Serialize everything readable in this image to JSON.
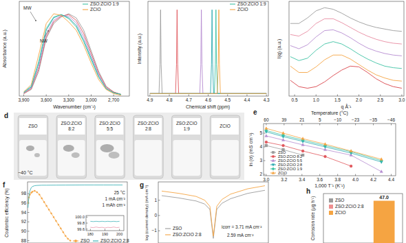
{
  "chart_data": [
    {
      "type": "line",
      "xlabel": "Wavenumber (cm⁻¹)",
      "ylabel": "Absorbance (a.u.)",
      "annotations": [
        "MW",
        "NW"
      ],
      "x": [
        3900,
        3800,
        3700,
        3600,
        3500,
        3400,
        3300,
        3200,
        3100,
        3000,
        2900,
        2800,
        2700,
        2600
      ],
      "xlim": [
        3960,
        2490
      ],
      "xticks": [
        {
          "value": 3900,
          "label": "3,900"
        },
        {
          "value": 3600,
          "label": "3,600"
        },
        {
          "value": 3300,
          "label": "3,300"
        },
        {
          "value": 3000,
          "label": "3,000"
        },
        {
          "value": 2700,
          "label": "2,700"
        }
      ],
      "ylim": [
        0,
        1.15
      ],
      "tick_labels": "x",
      "series": [
        {
          "color": "#9b9b9b",
          "values": [
            0.03,
            0.08,
            0.3,
            0.7,
            0.88,
            0.96,
            1.0,
            0.95,
            0.8,
            0.55,
            0.3,
            0.12,
            0.05,
            0.02
          ]
        },
        {
          "color": "#e0565b",
          "values": [
            0.03,
            0.09,
            0.33,
            0.72,
            0.9,
            0.97,
            0.99,
            0.92,
            0.76,
            0.52,
            0.28,
            0.11,
            0.05,
            0.02
          ]
        },
        {
          "color": "#b58bd0",
          "values": [
            0.04,
            0.1,
            0.36,
            0.75,
            0.92,
            0.98,
            0.97,
            0.89,
            0.72,
            0.49,
            0.26,
            0.1,
            0.04,
            0.02
          ]
        },
        {
          "color": "#2aa9b0",
          "values": [
            0.04,
            0.11,
            0.4,
            0.8,
            0.95,
            0.99,
            0.95,
            0.86,
            0.68,
            0.46,
            0.24,
            0.09,
            0.04,
            0.02
          ]
        },
        {
          "name": "ZSO:ZCIO 1:9",
          "color": "#3cc2a4",
          "values": [
            0.05,
            0.12,
            0.42,
            0.82,
            0.96,
            0.99,
            0.94,
            0.84,
            0.66,
            0.44,
            0.23,
            0.09,
            0.04,
            0.02
          ]
        },
        {
          "name": "ZCIO",
          "color": "#f5a442",
          "values": [
            0.05,
            0.14,
            0.5,
            0.88,
            1.0,
            0.98,
            0.9,
            0.8,
            0.62,
            0.4,
            0.2,
            0.08,
            0.03,
            0.01
          ]
        }
      ]
    },
    {
      "type": "line",
      "xlabel": "Chemical shift (ppm)",
      "ylabel": "Intensity (a.u.)",
      "xlim": [
        4.91,
        4.29
      ],
      "xticks": [
        4.9,
        4.8,
        4.7,
        4.6,
        4.5,
        4.4,
        4.3
      ],
      "ylim": [
        -0.03,
        1.1
      ],
      "tick_labels": "x",
      "series": [
        {
          "color": "#9b9b9b",
          "x": [
            4.9,
            4.853,
            4.848,
            4.845,
            4.842,
            4.837,
            4.3
          ],
          "values": [
            0,
            0,
            0.35,
            1,
            0.35,
            0,
            0
          ]
        },
        {
          "color": "#e0565b",
          "x": [
            4.9,
            4.768,
            4.763,
            4.76,
            4.757,
            4.752,
            4.3
          ],
          "values": [
            0,
            0,
            0.35,
            1,
            0.35,
            0,
            0
          ]
        },
        {
          "color": "#b58bd0",
          "x": [
            4.9,
            4.643,
            4.638,
            4.635,
            4.632,
            4.627,
            4.3
          ],
          "values": [
            0,
            0,
            0.35,
            1,
            0.35,
            0,
            0
          ]
        },
        {
          "color": "#2aa9b0",
          "x": [
            4.9,
            4.588,
            4.583,
            4.58,
            4.577,
            4.572,
            4.3
          ],
          "values": [
            0,
            0,
            0.35,
            1,
            0.35,
            0,
            0
          ]
        },
        {
          "name": "ZSO:ZCIO 1:9",
          "color": "#3cc2a4",
          "x": [
            4.9,
            4.568,
            4.563,
            4.56,
            4.557,
            4.552,
            4.3
          ],
          "values": [
            0,
            0,
            0.35,
            1,
            0.35,
            0,
            0
          ]
        },
        {
          "name": "ZCIO",
          "color": "#f5a442",
          "x": [
            4.9,
            4.553,
            4.548,
            4.545,
            4.542,
            4.537,
            4.3
          ],
          "values": [
            0,
            0,
            0.35,
            1,
            0.35,
            0,
            0
          ]
        }
      ]
    },
    {
      "type": "line",
      "xlabel": "q Å⁻¹",
      "ylabel": "I(q) (a.u.)",
      "x": [
        0.4,
        0.6,
        0.8,
        1.0,
        1.2,
        1.4,
        1.6,
        1.8,
        2.0,
        2.2,
        2.4,
        2.6,
        2.8,
        3.0
      ],
      "xlim": [
        0.37,
        3.05
      ],
      "xticks": [
        0.5,
        {
          "value": 1,
          "label": "1.0"
        },
        1.5,
        {
          "value": 2,
          "label": "2.0"
        },
        2.5,
        {
          "value": 3,
          "label": "3.0"
        }
      ],
      "ylim": [
        0,
        1.2
      ],
      "tick_labels": "x",
      "series": [
        {
          "color": "#d9434a",
          "values": [
            0.2,
            0.12,
            0.1,
            0.12,
            0.18,
            0.26,
            0.33,
            0.38,
            0.37,
            0.3,
            0.22,
            0.16,
            0.12,
            0.1
          ]
        },
        {
          "color": "#f5a442",
          "values": [
            0.38,
            0.3,
            0.3,
            0.37,
            0.46,
            0.52,
            0.52,
            0.47,
            0.4,
            0.33,
            0.27,
            0.23,
            0.2,
            0.19
          ]
        },
        {
          "color": "#3cc2a4",
          "values": [
            0.5,
            0.45,
            0.48,
            0.58,
            0.66,
            0.69,
            0.66,
            0.6,
            0.53,
            0.47,
            0.42,
            0.38,
            0.36,
            0.35
          ]
        },
        {
          "color": "#b58bd0",
          "values": [
            0.64,
            0.6,
            0.65,
            0.75,
            0.83,
            0.84,
            0.8,
            0.74,
            0.67,
            0.61,
            0.57,
            0.54,
            0.52,
            0.51
          ]
        },
        {
          "color": "#e88aa0",
          "values": [
            0.78,
            0.76,
            0.82,
            0.92,
            0.98,
            0.98,
            0.93,
            0.87,
            0.81,
            0.76,
            0.72,
            0.69,
            0.67,
            0.66
          ]
        },
        {
          "color": "#9b9b9b",
          "values": [
            0.92,
            0.92,
            0.99,
            1.08,
            1.12,
            1.1,
            1.05,
            0.99,
            0.94,
            0.9,
            0.87,
            0.85,
            0.83,
            0.82
          ]
        }
      ]
    },
    {
      "type": "line",
      "title": "e",
      "xlabel": "1,000 T⁻¹ (K⁻¹)",
      "x2label": "Temperature (°C)",
      "ylabel": "ln (σ) (mS cm⁻¹)",
      "x": [
        3.0,
        3.19,
        3.41,
        3.66,
        3.95,
        4.29
      ],
      "xlim": [
        2.97,
        4.45
      ],
      "xticks": [
        {
          "value": 3,
          "label": "3.0"
        },
        3.2,
        3.4,
        3.6,
        3.8,
        {
          "value": 4,
          "label": "4.0"
        },
        4.2,
        4.4
      ],
      "x2ticks": [
        {
          "value": 3.0,
          "label": "60"
        },
        {
          "value": 3.2,
          "label": "39"
        },
        {
          "value": 3.4,
          "label": "21"
        },
        {
          "value": 3.6,
          "label": "5"
        },
        {
          "value": 3.8,
          "label": "−10"
        },
        {
          "value": 4.0,
          "label": "−23"
        },
        {
          "value": 4.2,
          "label": "−35"
        },
        {
          "value": 4.4,
          "label": "−46"
        }
      ],
      "ylim": [
        1.9,
        5.7
      ],
      "yticks": [
        2,
        3,
        4,
        5
      ],
      "series": [
        {
          "name": "ZSO",
          "color": "#9b9b9b",
          "marker": "square",
          "values": [
            4.1,
            3.8,
            3.4,
            null,
            null,
            null
          ]
        },
        {
          "name": "ZSO:ZCIO 8:2",
          "color": "#e0565b",
          "marker": "circle",
          "values": [
            4.35,
            4.1,
            3.7,
            3.3,
            2.6,
            null
          ]
        },
        {
          "name": "ZSO:ZCIO 5:5",
          "color": "#b58bd0",
          "marker": "triangle",
          "values": [
            4.8,
            4.5,
            4.15,
            3.8,
            3.4,
            2.2
          ]
        },
        {
          "name": "ZSO:ZCIO 2:8",
          "color": "#2aa9b0",
          "marker": "triangle-down",
          "values": [
            5.1,
            4.75,
            4.4,
            4.0,
            3.55,
            2.9
          ]
        },
        {
          "name": "ZSO:ZCIO 1:9",
          "color": "#3cc2a4",
          "marker": "diamond",
          "values": [
            5.2,
            4.85,
            4.5,
            4.1,
            3.65,
            3.0
          ]
        },
        {
          "name": "ZCIO",
          "color": "#f5a442",
          "marker": "triangle",
          "values": [
            5.35,
            5.0,
            4.6,
            4.2,
            3.7,
            3.1
          ]
        }
      ]
    },
    {
      "type": "line",
      "title": "f",
      "ylabel": "Coulombic efficiency (%)",
      "annotations": [
        "25 °C",
        "1 mA cm⁻²",
        "1 mAh cm⁻²"
      ],
      "xlim": [
        0,
        210
      ],
      "ylim": [
        87.5,
        100.5
      ],
      "yticks": [
        88,
        90,
        92,
        94,
        96,
        98
      ],
      "tick_labels": "y",
      "series": [
        {
          "name": "ZSO",
          "color": "#f5a442",
          "marker": "circle",
          "x": [
            1,
            3,
            5,
            8,
            10,
            15,
            20,
            25,
            30,
            35,
            40,
            45,
            50,
            55,
            60,
            65,
            70,
            75,
            80,
            85,
            90
          ],
          "values": [
            96.0,
            97.2,
            97.8,
            98.2,
            98.4,
            98.6,
            98.3,
            97.8,
            97.0,
            96.2,
            95.4,
            94.6,
            93.8,
            93.0,
            92.2,
            91.4,
            90.6,
            89.8,
            89.0,
            88.4,
            88.0
          ]
        },
        {
          "name": "ZSO:ZCIO 2:8",
          "color": "#2aa9b0",
          "x": [
            1,
            3,
            5,
            8,
            10,
            15,
            20,
            30,
            40,
            60,
            80,
            100,
            120,
            140,
            160,
            180,
            200
          ],
          "values": [
            95.0,
            97.5,
            98.6,
            99.3,
            99.5,
            99.7,
            99.75,
            99.8,
            99.8,
            99.82,
            99.83,
            99.84,
            99.85,
            99.85,
            99.85,
            99.85,
            99.85
          ]
        }
      ]
    },
    {
      "type": "line",
      "x": [
        180,
        182,
        184,
        186,
        188,
        190,
        192,
        194,
        196,
        198,
        200
      ],
      "xlim": [
        177,
        203
      ],
      "xticks": [
        180,
        190,
        200
      ],
      "ylim": [
        99.55,
        100.05
      ],
      "yticks": [
        {
          "value": 100,
          "label": "100.0"
        },
        99.8,
        99.6
      ],
      "series": [
        {
          "color": "#2aa9b0",
          "values": [
            99.86,
            99.85,
            99.86,
            99.85,
            99.86,
            99.85,
            99.86,
            99.85,
            99.86,
            99.85,
            99.86
          ]
        },
        {
          "color": "#e88aa0",
          "values": [
            99.66,
            99.65,
            99.67,
            99.65,
            99.66,
            99.64,
            99.66,
            99.65,
            99.67,
            99.65,
            99.66
          ]
        }
      ]
    },
    {
      "type": "line",
      "title": "g",
      "ylabel": "log (current density) (mA cm⁻²)",
      "annotations": [
        "icorr = 3.71 mA cm⁻²",
        "2.59 mA cm⁻²"
      ],
      "x": [
        -0.3,
        -0.2,
        -0.1,
        -0.05,
        -0.02,
        0,
        0.02,
        0.05,
        0.1,
        0.2,
        0.3
      ],
      "xlim": [
        -0.32,
        0.32
      ],
      "ylim": [
        -1.8,
        2.2
      ],
      "yticks": [
        {
          "value": -1,
          "label": "−1"
        },
        0,
        1
      ],
      "tick_labels": "y",
      "series": [
        {
          "name": "ZSO",
          "color": "#9b9b9b",
          "values": [
            1.3,
            1.15,
            0.95,
            0.75,
            0.4,
            -1.5,
            0.4,
            0.8,
            1.1,
            1.45,
            1.65
          ]
        },
        {
          "name": "ZSO:ZCIO 2:8",
          "color": "#f5a442",
          "values": [
            1.6,
            1.45,
            1.25,
            1.0,
            0.6,
            -1.35,
            0.6,
            1.05,
            1.4,
            1.75,
            1.95
          ]
        }
      ]
    },
    {
      "type": "bar",
      "title": "h",
      "ylabel": "Corrosion rate (μg h⁻¹)",
      "categories": [
        null
      ],
      "ylim": [
        0,
        55
      ],
      "data_labels": true,
      "tick_labels": false,
      "series": [
        {
          "name": "ZSO",
          "color": "#9b9b9b",
          "values": [
            null
          ]
        },
        {
          "name": "ZSO:ZCIO 2:8",
          "color": "#ee8f8f",
          "values": [
            null
          ]
        },
        {
          "name": "ZCIO",
          "color": "#f5a442",
          "values": [
            47.0
          ],
          "value_labels": [
            "47.0"
          ]
        }
      ]
    }
  ],
  "photo": {
    "label": "d",
    "vials": [
      "ZSO",
      "ZSO:ZCIO 8:2",
      "ZSO:ZCIO 5:5",
      "ZSO:ZCIO 2:8",
      "ZSO:ZCIO 1:9",
      "ZCIO"
    ],
    "temperature": "−40 °C"
  }
}
